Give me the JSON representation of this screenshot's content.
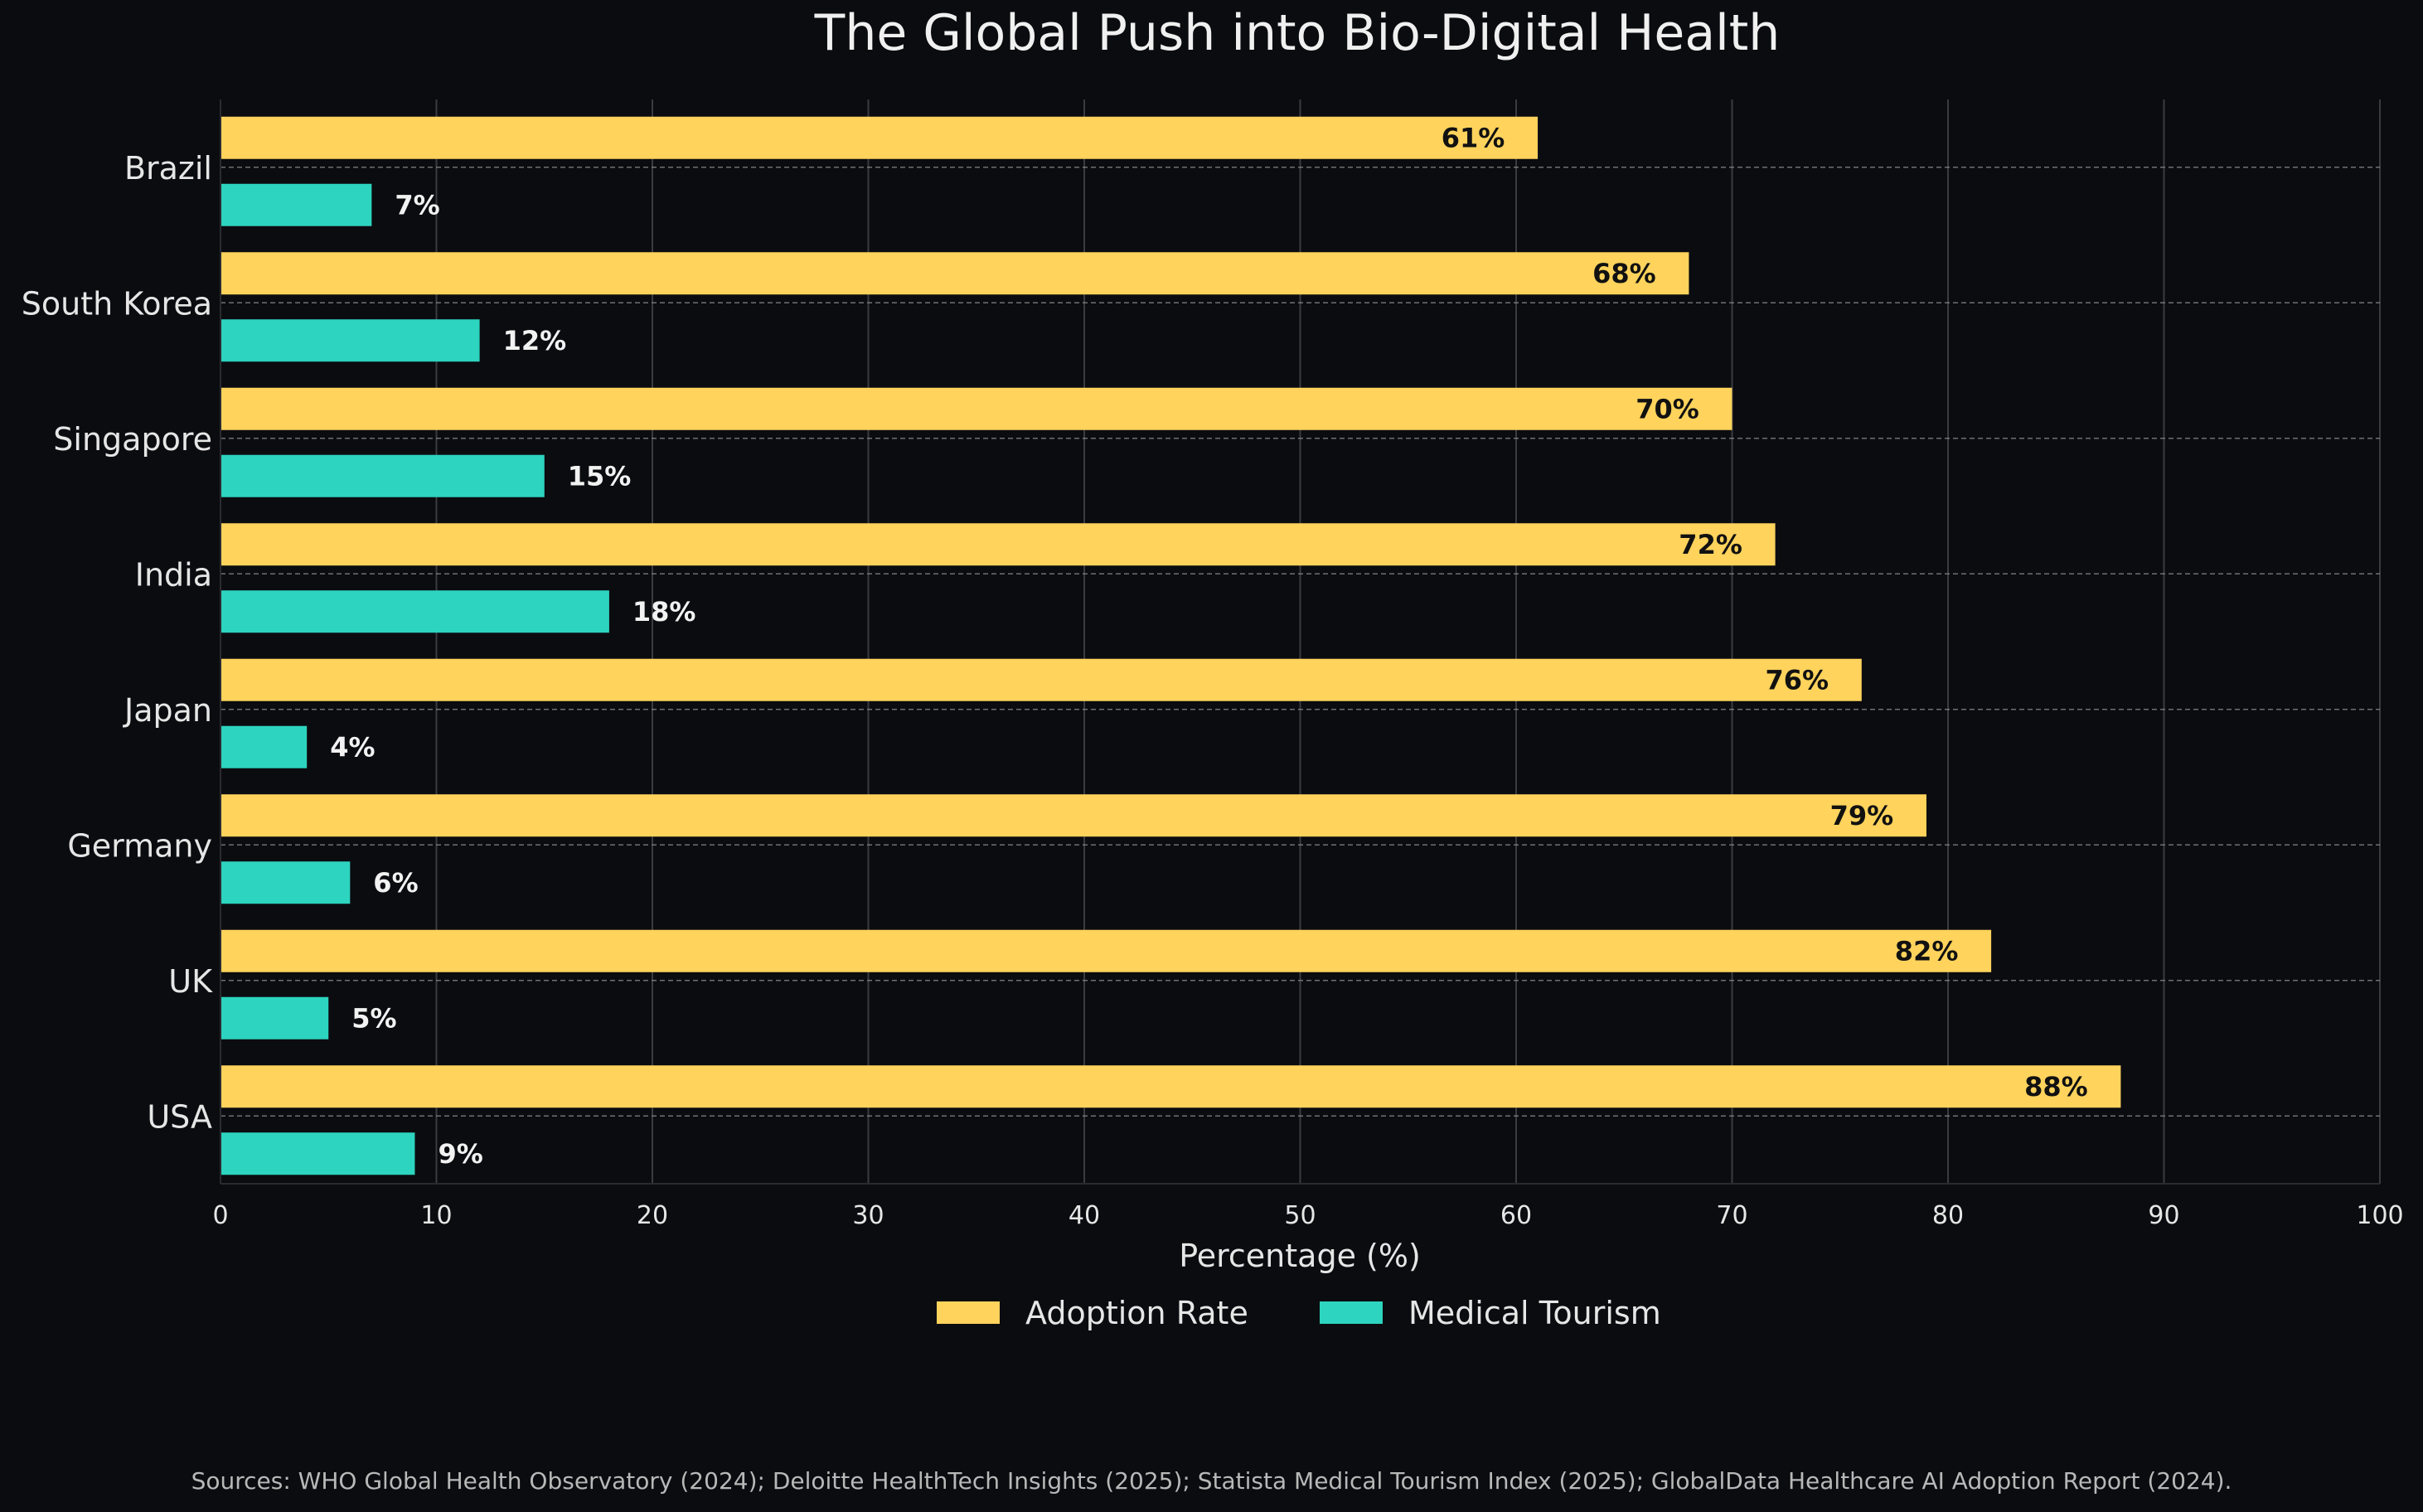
{
  "chart_data": {
    "type": "bar",
    "orientation": "horizontal",
    "title": "The Global Push into Bio-Digital Health",
    "xlabel": "Percentage (%)",
    "ylabel": "",
    "xlim": [
      0,
      100
    ],
    "xticks": [
      0,
      10,
      20,
      30,
      40,
      50,
      60,
      70,
      80,
      90,
      100
    ],
    "grid": true,
    "legend_position": "bottom-center",
    "categories": [
      "Brazil",
      "South Korea",
      "Singapore",
      "India",
      "Japan",
      "Germany",
      "UK",
      "USA"
    ],
    "series": [
      {
        "name": "Adoption Rate",
        "color": "#ffd35c",
        "label_color": "#111111",
        "values": [
          61,
          68,
          70,
          72,
          76,
          79,
          82,
          88
        ]
      },
      {
        "name": "Medical Tourism",
        "color": "#2dd4bf",
        "label_color": "#f2f2f2",
        "values": [
          7,
          12,
          15,
          18,
          4,
          6,
          5,
          9
        ]
      }
    ],
    "value_suffix": "%"
  },
  "colors": {
    "background": "#0b0c10",
    "text": "#e6e6e6",
    "grid": "#3a3b40",
    "separator": "#8a8a8a"
  },
  "source": "Sources: WHO Global Health Observatory (2024); Deloitte HealthTech Insights (2025); Statista Medical Tourism Index (2025); GlobalData Healthcare AI Adoption Report (2024)."
}
